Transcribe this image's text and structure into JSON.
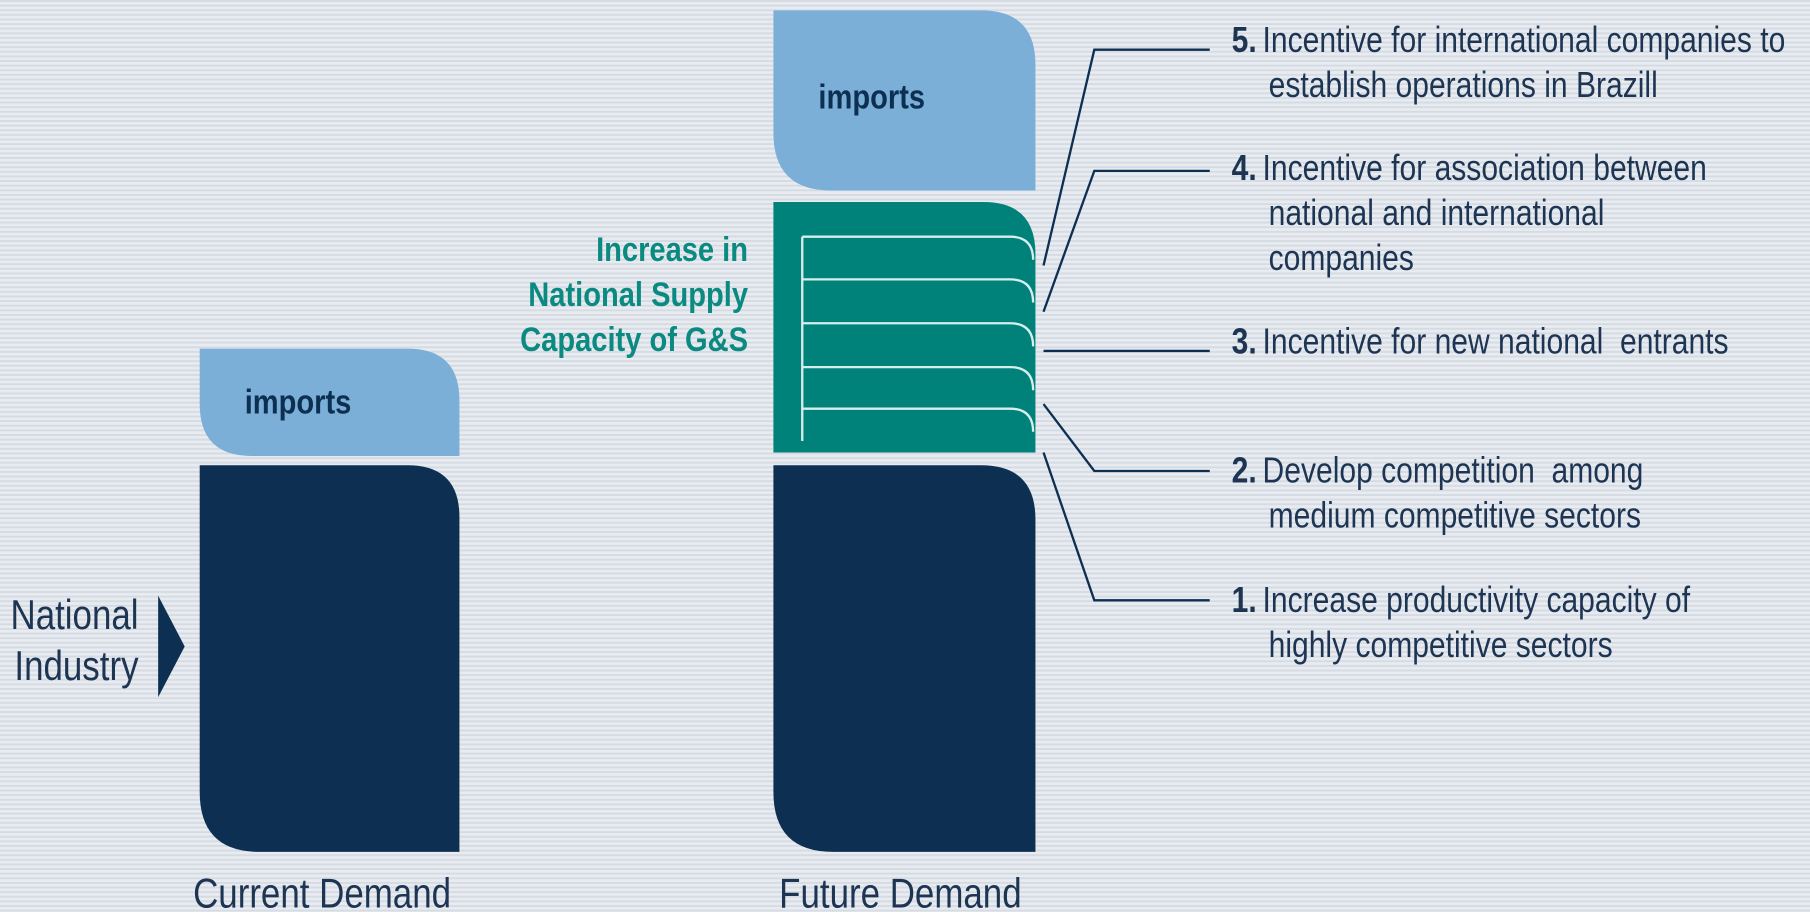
{
  "columns": [
    {
      "label": "Current Demand",
      "imports": "imports"
    },
    {
      "label": "Future Demand",
      "imports": "imports"
    }
  ],
  "side_label": [
    "National",
    "Industry"
  ],
  "increase_label": [
    "Increase in",
    "National Supply",
    "Capacity of G&S"
  ],
  "measures": [
    {
      "number": "5.",
      "lines": [
        "Incentive for international companies to",
        "establish operations in Brazill"
      ]
    },
    {
      "number": "4.",
      "lines": [
        "Incentive for association between",
        "national and international",
        "companies"
      ]
    },
    {
      "number": "3.",
      "lines": [
        "Incentive for new national  entrants"
      ]
    },
    {
      "number": "2.",
      "lines": [
        "Develop competition  among",
        "medium competitive sectors"
      ]
    },
    {
      "number": "1.",
      "lines": [
        "Increase productivity capacity of",
        "highly competitive sectors"
      ]
    }
  ]
}
